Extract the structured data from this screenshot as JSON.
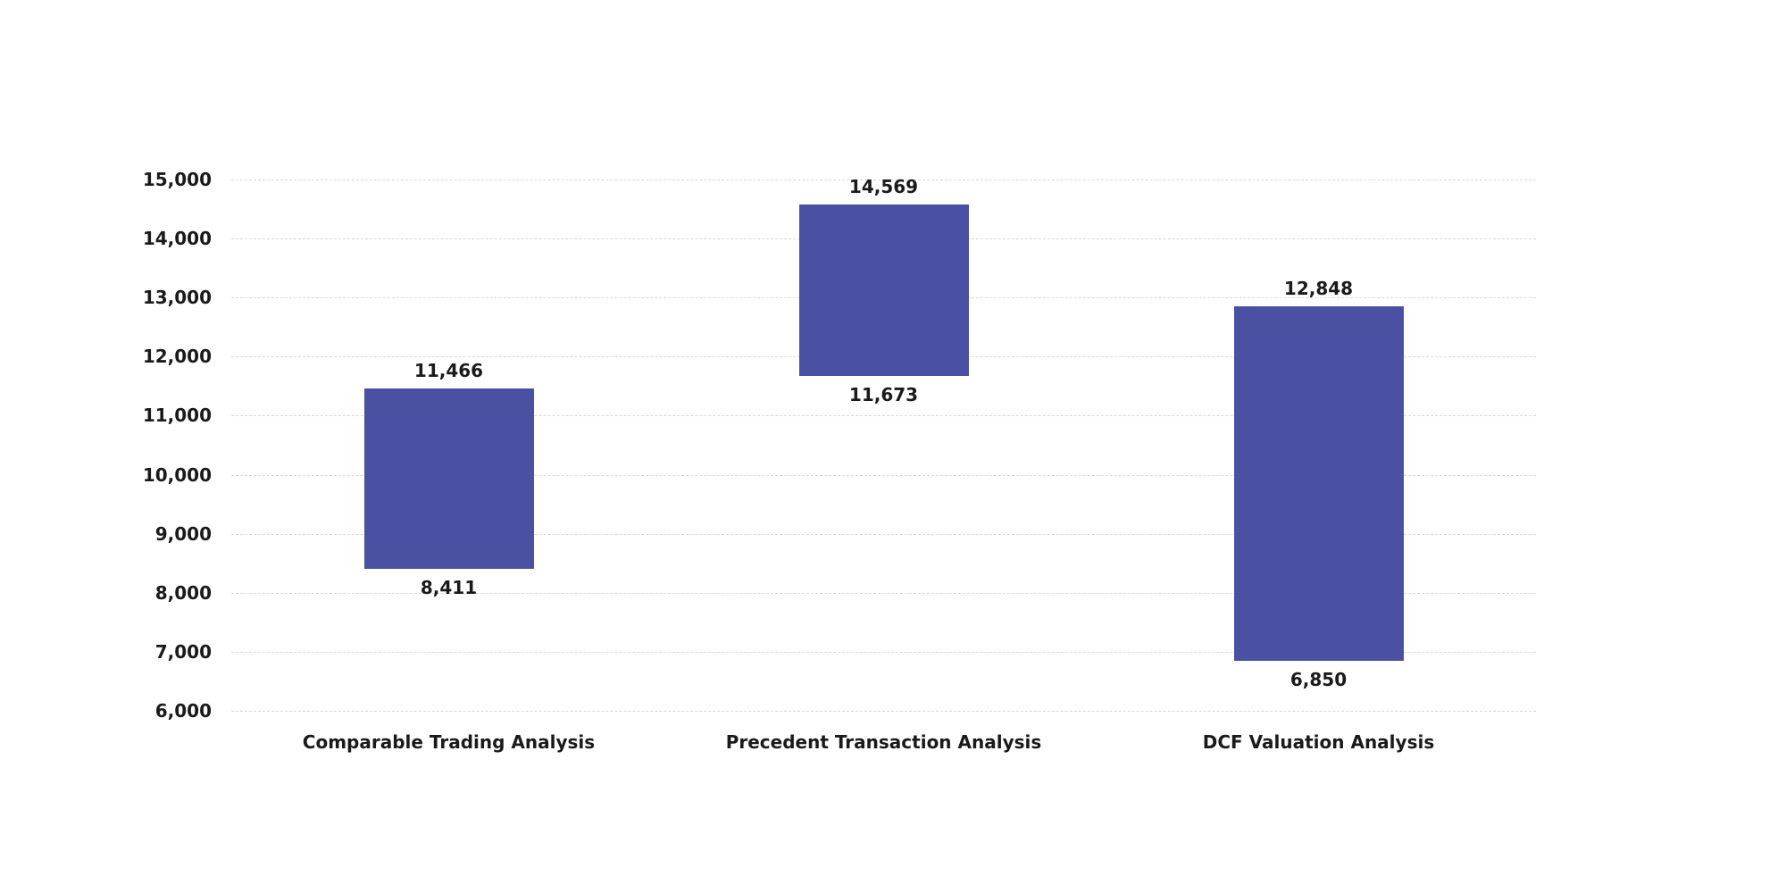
{
  "chart": {
    "background_color": "#ffffff",
    "bar_color": "#4a51a3",
    "gridline_color": "#d9d9d9",
    "label_color": "#1a1a1a"
  },
  "chart_data": {
    "type": "bar",
    "subtype": "floating-range-column",
    "title": "",
    "xlabel": "",
    "ylabel": "",
    "legend": "none",
    "grid": "horizontal-dashed",
    "categories": [
      "Comparable Trading Analysis",
      "Precedent Transaction Analysis",
      "DCF Valuation Analysis"
    ],
    "series": [
      {
        "name": "Valuation Range",
        "ranges": [
          {
            "category": "Comparable Trading Analysis",
            "low": 8411,
            "high": 11466,
            "low_label": "8,411",
            "high_label": "11,466"
          },
          {
            "category": "Precedent Transaction Analysis",
            "low": 11673,
            "high": 14569,
            "low_label": "11,673",
            "high_label": "14,569"
          },
          {
            "category": "DCF Valuation Analysis",
            "low": 6850,
            "high": 12848,
            "low_label": "6,850",
            "high_label": "12,848"
          }
        ]
      }
    ],
    "ylim": [
      6000,
      15000
    ],
    "y_ticks": [
      6000,
      7000,
      8000,
      9000,
      10000,
      11000,
      12000,
      13000,
      14000,
      15000
    ],
    "y_tick_labels": [
      "6,000",
      "7,000",
      "8,000",
      "9,000",
      "10,000",
      "11,000",
      "12,000",
      "13,000",
      "14,000",
      "15,000"
    ]
  }
}
